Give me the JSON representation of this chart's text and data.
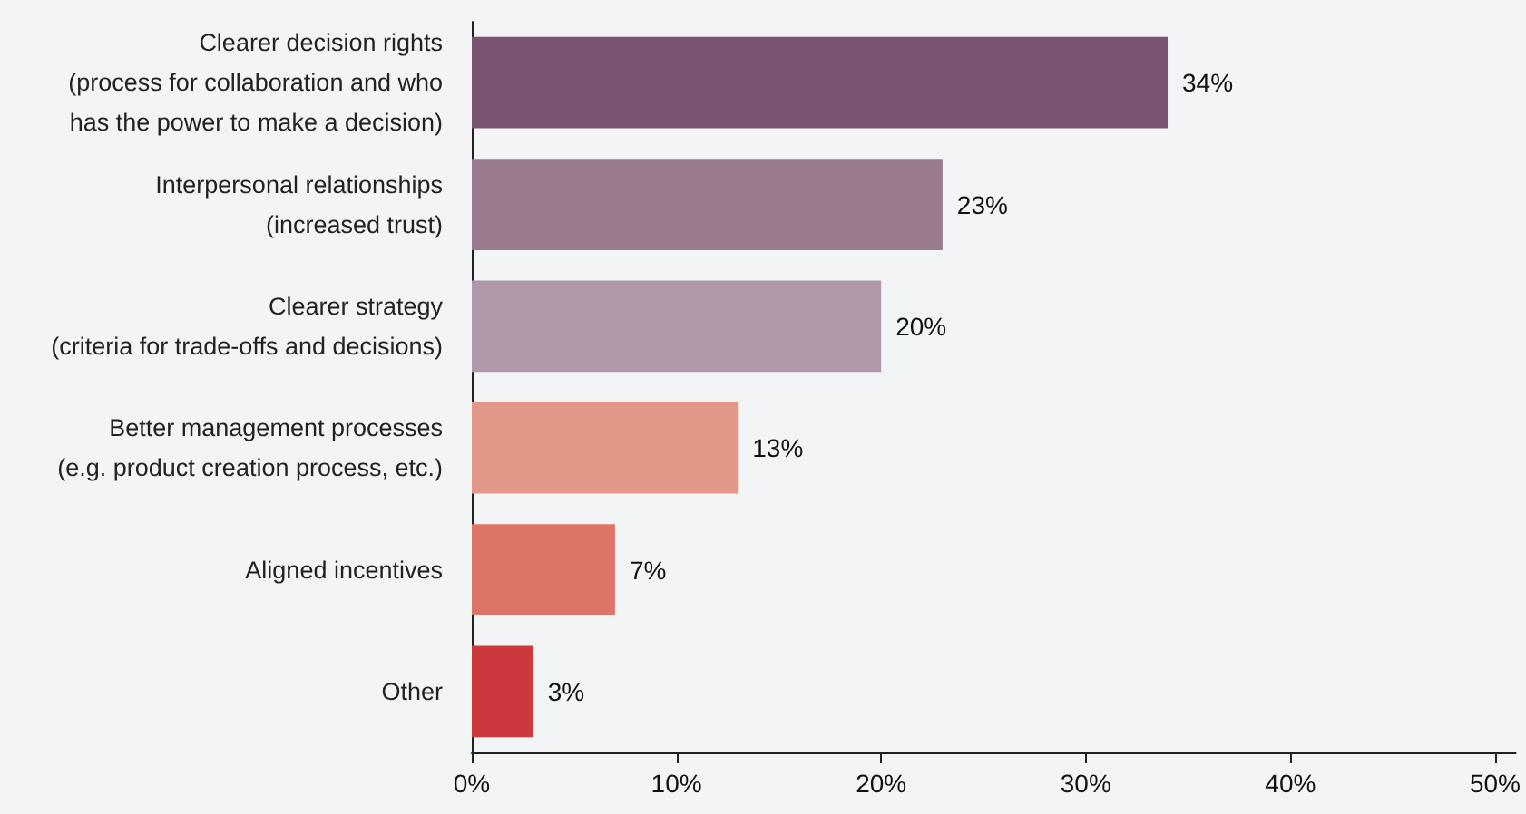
{
  "chart_data": {
    "type": "bar",
    "orientation": "horizontal",
    "categories": [
      "Clearer decision rights\n(process for collaboration and who\nhas the power to make a decision)",
      "Interpersonal relationships\n(increased trust)",
      "Clearer strategy\n(criteria for trade-offs and decisions)",
      "Better management processes\n(e.g. product creation process, etc.)",
      "Aligned incentives",
      "Other"
    ],
    "values": [
      34,
      23,
      20,
      13,
      7,
      3
    ],
    "colors": [
      "#79536f",
      "#9a7a8f",
      "#b098aa",
      "#e39887",
      "#dc7565",
      "#cc383c"
    ],
    "value_labels": [
      "34%",
      "23%",
      "20%",
      "13%",
      "7%",
      "3%"
    ],
    "xlim": [
      0,
      51
    ],
    "xticks": [
      {
        "value": 0,
        "label": "0%"
      },
      {
        "value": 10,
        "label": "10%"
      },
      {
        "value": 20,
        "label": "20%"
      },
      {
        "value": 30,
        "label": "30%"
      },
      {
        "value": 40,
        "label": "40%"
      },
      {
        "value": 50,
        "label": "50%"
      }
    ]
  }
}
